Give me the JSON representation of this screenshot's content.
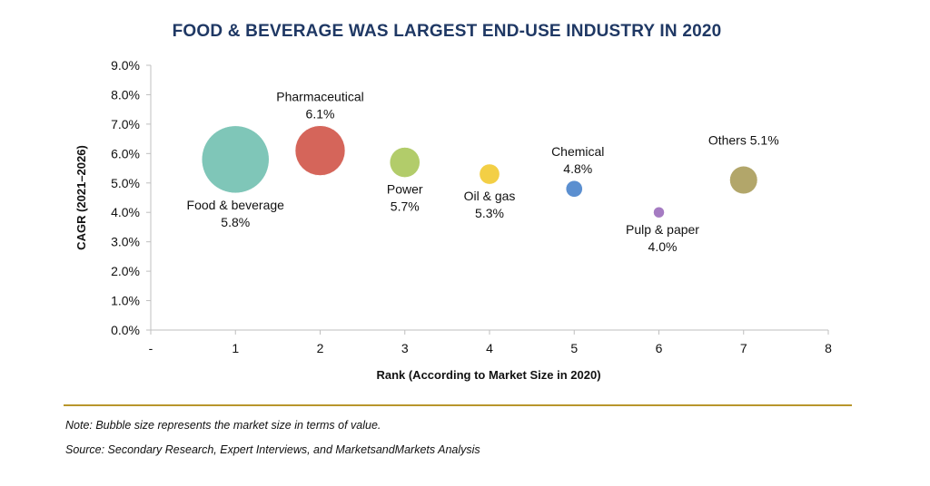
{
  "chart_data": {
    "type": "bubble",
    "title": "FOOD & BEVERAGE WAS LARGEST END-USE INDUSTRY IN 2020",
    "xlabel": "Rank (According to Market Size in 2020)",
    "ylabel": "CAGR (2021–2026)",
    "xlim": [
      0,
      8
    ],
    "ylim": [
      0,
      9
    ],
    "x_ticks": [
      "-",
      "1",
      "2",
      "3",
      "4",
      "5",
      "6",
      "7",
      "8"
    ],
    "y_ticks": [
      "0.0%",
      "1.0%",
      "2.0%",
      "3.0%",
      "4.0%",
      "5.0%",
      "6.0%",
      "7.0%",
      "8.0%",
      "9.0%"
    ],
    "grid": false,
    "series": [
      {
        "name": "Food & beverage",
        "x": 1,
        "y": 5.8,
        "label_value": "5.8%",
        "relative_size": 1.0,
        "color": "#7fc6b8"
      },
      {
        "name": "Pharmaceutical",
        "x": 2,
        "y": 6.1,
        "label_value": "6.1%",
        "relative_size": 0.55,
        "color": "#d5655a"
      },
      {
        "name": "Power",
        "x": 3,
        "y": 5.7,
        "label_value": "5.7%",
        "relative_size": 0.2,
        "color": "#b2cc6a"
      },
      {
        "name": "Oil & gas",
        "x": 4,
        "y": 5.3,
        "label_value": "5.3%",
        "relative_size": 0.09,
        "color": "#f3cf45"
      },
      {
        "name": "Chemical",
        "x": 5,
        "y": 4.8,
        "label_value": "4.8%",
        "relative_size": 0.06,
        "color": "#5b8fd0"
      },
      {
        "name": "Pulp & paper",
        "x": 6,
        "y": 4.0,
        "label_value": "4.0%",
        "relative_size": 0.025,
        "color": "#a57bc2"
      },
      {
        "name": "Others",
        "x": 7,
        "y": 5.1,
        "label_value": "5.1%",
        "relative_size": 0.17,
        "color": "#b2a66a"
      }
    ]
  },
  "footer": {
    "note": "Note: Bubble size represents the market size in terms of value.",
    "source": "Source: Secondary Research, Expert Interviews, and MarketsandMarkets Analysis"
  }
}
